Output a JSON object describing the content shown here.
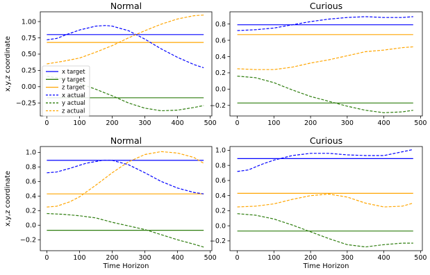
{
  "figure": {
    "legend_entries": [
      "x target",
      "y target",
      "z target",
      "x actual",
      "y actual",
      "z actual"
    ],
    "colors": {
      "x": "#0000ff",
      "y": "#2e7d0e",
      "z": "#ffa500",
      "frame": "#000000",
      "legend_border": "#cccccc"
    }
  },
  "chart_data": [
    {
      "type": "line",
      "title": "Normal",
      "xlabel": "",
      "ylabel": "x,y,z coordinate",
      "xlim": [
        -20,
        505
      ],
      "ylim": [
        -0.45,
        1.15
      ],
      "xticks": [
        0,
        100,
        200,
        300,
        400,
        500
      ],
      "yticks": [
        -0.25,
        0.0,
        0.25,
        0.5,
        0.75,
        1.0
      ],
      "ytick_labels": [
        "−0.25",
        "0.00",
        "0.25",
        "0.50",
        "0.75",
        "1.00"
      ],
      "grid": false,
      "legend": "center-left",
      "series": [
        {
          "name": "x target",
          "style": "solid",
          "color": "#0000ff",
          "x": [
            0,
            480
          ],
          "y": [
            0.8,
            0.8
          ]
        },
        {
          "name": "y target",
          "style": "solid",
          "color": "#2e7d0e",
          "x": [
            0,
            480
          ],
          "y": [
            -0.17,
            -0.17
          ]
        },
        {
          "name": "z target",
          "style": "solid",
          "color": "#ffa500",
          "x": [
            0,
            480
          ],
          "y": [
            0.68,
            0.68
          ]
        },
        {
          "name": "x actual",
          "style": "dashed",
          "color": "#0000ff",
          "x": [
            0,
            30,
            60,
            100,
            150,
            180,
            200,
            250,
            300,
            350,
            400,
            450,
            480
          ],
          "y": [
            0.72,
            0.74,
            0.8,
            0.87,
            0.93,
            0.94,
            0.93,
            0.86,
            0.73,
            0.58,
            0.45,
            0.34,
            0.29
          ]
        },
        {
          "name": "y actual",
          "style": "dashed",
          "color": "#2e7d0e",
          "x": [
            0,
            50,
            100,
            150,
            200,
            250,
            300,
            350,
            400,
            450,
            480
          ],
          "y": [
            0.16,
            0.12,
            0.05,
            -0.04,
            -0.14,
            -0.25,
            -0.33,
            -0.37,
            -0.36,
            -0.32,
            -0.29
          ]
        },
        {
          "name": "z actual",
          "style": "dashed",
          "color": "#ffa500",
          "x": [
            0,
            50,
            100,
            150,
            200,
            250,
            300,
            350,
            400,
            450,
            480
          ],
          "y": [
            0.35,
            0.39,
            0.44,
            0.53,
            0.63,
            0.75,
            0.86,
            0.96,
            1.04,
            1.09,
            1.1
          ]
        }
      ]
    },
    {
      "type": "line",
      "title": "Curious",
      "xlabel": "",
      "ylabel": "",
      "xlim": [
        -20,
        505
      ],
      "ylim": [
        -0.33,
        0.95
      ],
      "xticks": [
        0,
        100,
        200,
        300,
        400,
        500
      ],
      "yticks": [
        -0.2,
        0.0,
        0.2,
        0.4,
        0.6,
        0.8
      ],
      "ytick_labels": [
        "−0.2",
        "0.0",
        "0.2",
        "0.4",
        "0.6",
        "0.8"
      ],
      "grid": false,
      "series": [
        {
          "name": "x target",
          "style": "solid",
          "color": "#0000ff",
          "x": [
            0,
            480
          ],
          "y": [
            0.79,
            0.79
          ]
        },
        {
          "name": "y target",
          "style": "solid",
          "color": "#2e7d0e",
          "x": [
            0,
            480
          ],
          "y": [
            -0.17,
            -0.17
          ]
        },
        {
          "name": "z target",
          "style": "solid",
          "color": "#ffa500",
          "x": [
            0,
            480
          ],
          "y": [
            0.67,
            0.67
          ]
        },
        {
          "name": "x actual",
          "style": "dashed",
          "color": "#0000ff",
          "x": [
            0,
            50,
            100,
            150,
            200,
            250,
            300,
            350,
            400,
            450,
            480
          ],
          "y": [
            0.72,
            0.73,
            0.75,
            0.79,
            0.83,
            0.86,
            0.88,
            0.89,
            0.88,
            0.88,
            0.89
          ]
        },
        {
          "name": "y actual",
          "style": "dashed",
          "color": "#2e7d0e",
          "x": [
            0,
            50,
            100,
            150,
            200,
            250,
            300,
            350,
            400,
            450,
            480
          ],
          "y": [
            0.16,
            0.14,
            0.08,
            -0.01,
            -0.09,
            -0.15,
            -0.21,
            -0.26,
            -0.29,
            -0.28,
            -0.26
          ]
        },
        {
          "name": "z actual",
          "style": "dashed",
          "color": "#ffa500",
          "x": [
            0,
            50,
            100,
            150,
            200,
            250,
            300,
            350,
            400,
            450,
            480
          ],
          "y": [
            0.25,
            0.24,
            0.24,
            0.27,
            0.32,
            0.36,
            0.41,
            0.46,
            0.48,
            0.51,
            0.52
          ]
        }
      ]
    },
    {
      "type": "line",
      "title": "Normal",
      "xlabel": "Time Horizon",
      "ylabel": "x,y,z coordinate",
      "xlim": [
        -20,
        505
      ],
      "ylim": [
        -0.35,
        1.08
      ],
      "xticks": [
        0,
        100,
        200,
        300,
        400,
        500
      ],
      "yticks": [
        -0.2,
        0.0,
        0.2,
        0.4,
        0.6,
        0.8,
        1.0
      ],
      "ytick_labels": [
        "−0.2",
        "0.0",
        "0.2",
        "0.4",
        "0.6",
        "0.8",
        "1.0"
      ],
      "grid": false,
      "series": [
        {
          "name": "x target",
          "style": "solid",
          "color": "#0000ff",
          "x": [
            0,
            480
          ],
          "y": [
            0.89,
            0.89
          ]
        },
        {
          "name": "y target",
          "style": "solid",
          "color": "#2e7d0e",
          "x": [
            0,
            480
          ],
          "y": [
            -0.07,
            -0.07
          ]
        },
        {
          "name": "z target",
          "style": "solid",
          "color": "#ffa500",
          "x": [
            0,
            480
          ],
          "y": [
            0.43,
            0.43
          ]
        },
        {
          "name": "x actual",
          "style": "dashed",
          "color": "#0000ff",
          "x": [
            0,
            30,
            70,
            120,
            170,
            200,
            250,
            300,
            350,
            400,
            450,
            480
          ],
          "y": [
            0.72,
            0.73,
            0.78,
            0.85,
            0.89,
            0.89,
            0.83,
            0.72,
            0.6,
            0.51,
            0.45,
            0.43
          ]
        },
        {
          "name": "y actual",
          "style": "dashed",
          "color": "#2e7d0e",
          "x": [
            0,
            50,
            100,
            150,
            200,
            250,
            300,
            350,
            400,
            450,
            480
          ],
          "y": [
            0.16,
            0.15,
            0.13,
            0.1,
            0.04,
            -0.01,
            -0.06,
            -0.13,
            -0.2,
            -0.26,
            -0.3
          ]
        },
        {
          "name": "z actual",
          "style": "dashed",
          "color": "#ffa500",
          "x": [
            0,
            30,
            70,
            100,
            150,
            200,
            250,
            300,
            350,
            400,
            450,
            480
          ],
          "y": [
            0.25,
            0.26,
            0.32,
            0.39,
            0.55,
            0.72,
            0.87,
            0.97,
            1.01,
            0.99,
            0.93,
            0.85
          ]
        }
      ]
    },
    {
      "type": "line",
      "title": "Curious",
      "xlabel": "Time Horizon",
      "ylabel": "",
      "xlim": [
        -20,
        505
      ],
      "ylim": [
        -0.33,
        1.05
      ],
      "xticks": [
        0,
        100,
        200,
        300,
        400,
        500
      ],
      "yticks": [
        -0.2,
        0.0,
        0.2,
        0.4,
        0.6,
        0.8,
        1.0
      ],
      "ytick_labels": [
        "−0.2",
        "0.0",
        "0.2",
        "0.4",
        "0.6",
        "0.8",
        "1.0"
      ],
      "grid": false,
      "series": [
        {
          "name": "x target",
          "style": "solid",
          "color": "#0000ff",
          "x": [
            0,
            480
          ],
          "y": [
            0.89,
            0.89
          ]
        },
        {
          "name": "y target",
          "style": "solid",
          "color": "#2e7d0e",
          "x": [
            0,
            480
          ],
          "y": [
            -0.07,
            -0.07
          ]
        },
        {
          "name": "z target",
          "style": "solid",
          "color": "#ffa500",
          "x": [
            0,
            480
          ],
          "y": [
            0.43,
            0.43
          ]
        },
        {
          "name": "x actual",
          "style": "dashed",
          "color": "#0000ff",
          "x": [
            0,
            30,
            70,
            100,
            150,
            200,
            250,
            300,
            350,
            400,
            450,
            480
          ],
          "y": [
            0.72,
            0.74,
            0.82,
            0.87,
            0.93,
            0.96,
            0.96,
            0.94,
            0.93,
            0.93,
            0.98,
            1.01
          ]
        },
        {
          "name": "y actual",
          "style": "dashed",
          "color": "#2e7d0e",
          "x": [
            0,
            50,
            100,
            150,
            200,
            250,
            300,
            350,
            400,
            450,
            480
          ],
          "y": [
            0.16,
            0.14,
            0.09,
            0.01,
            -0.08,
            -0.17,
            -0.25,
            -0.28,
            -0.25,
            -0.23,
            -0.23
          ]
        },
        {
          "name": "z actual",
          "style": "dashed",
          "color": "#ffa500",
          "x": [
            0,
            50,
            100,
            150,
            200,
            250,
            300,
            350,
            400,
            450,
            480
          ],
          "y": [
            0.25,
            0.26,
            0.29,
            0.35,
            0.4,
            0.42,
            0.38,
            0.3,
            0.25,
            0.26,
            0.3
          ]
        }
      ]
    }
  ]
}
